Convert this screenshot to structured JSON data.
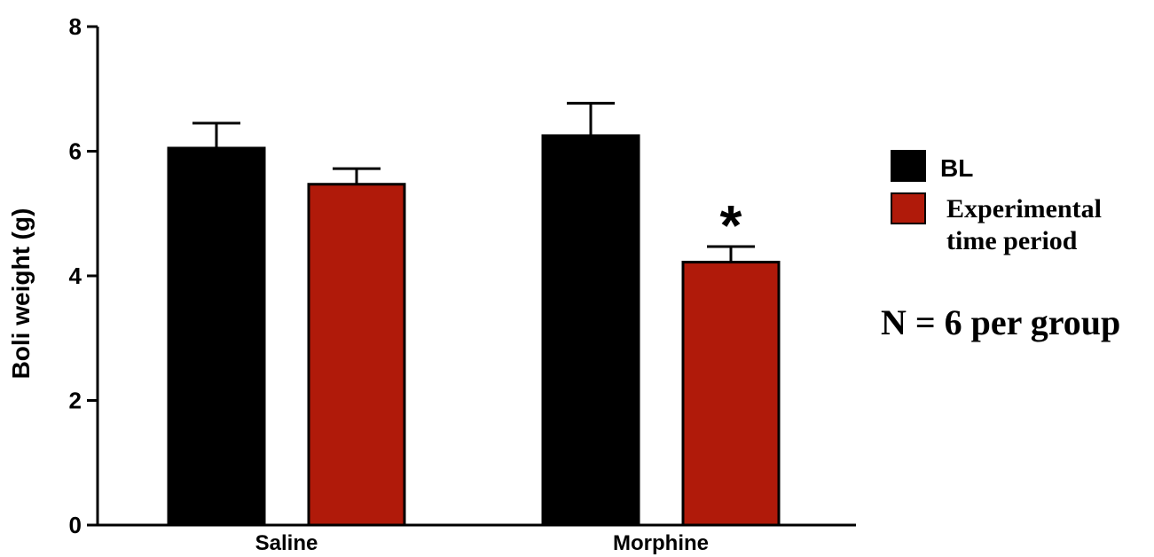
{
  "chart_data": {
    "type": "bar",
    "ylabel": "Boli weight (g)",
    "xlabel": "",
    "ylim": [
      0,
      8
    ],
    "yticks": [
      0,
      2,
      4,
      6,
      8
    ],
    "categories": [
      "Saline",
      "Morphine"
    ],
    "series": [
      {
        "name": "BL",
        "color": "#000000",
        "values": [
          6.05,
          6.25
        ],
        "errors": [
          0.4,
          0.52
        ]
      },
      {
        "name": "Experimental time period",
        "name_lines": [
          "Experimental",
          "time period"
        ],
        "color": "#b01a0a",
        "values": [
          5.47,
          4.22
        ],
        "errors": [
          0.25,
          0.25
        ]
      }
    ],
    "annotations": [
      {
        "text": "*",
        "category": 1,
        "series": 1
      }
    ],
    "note": "N = 6 per group",
    "legend": "right",
    "grid": false
  }
}
